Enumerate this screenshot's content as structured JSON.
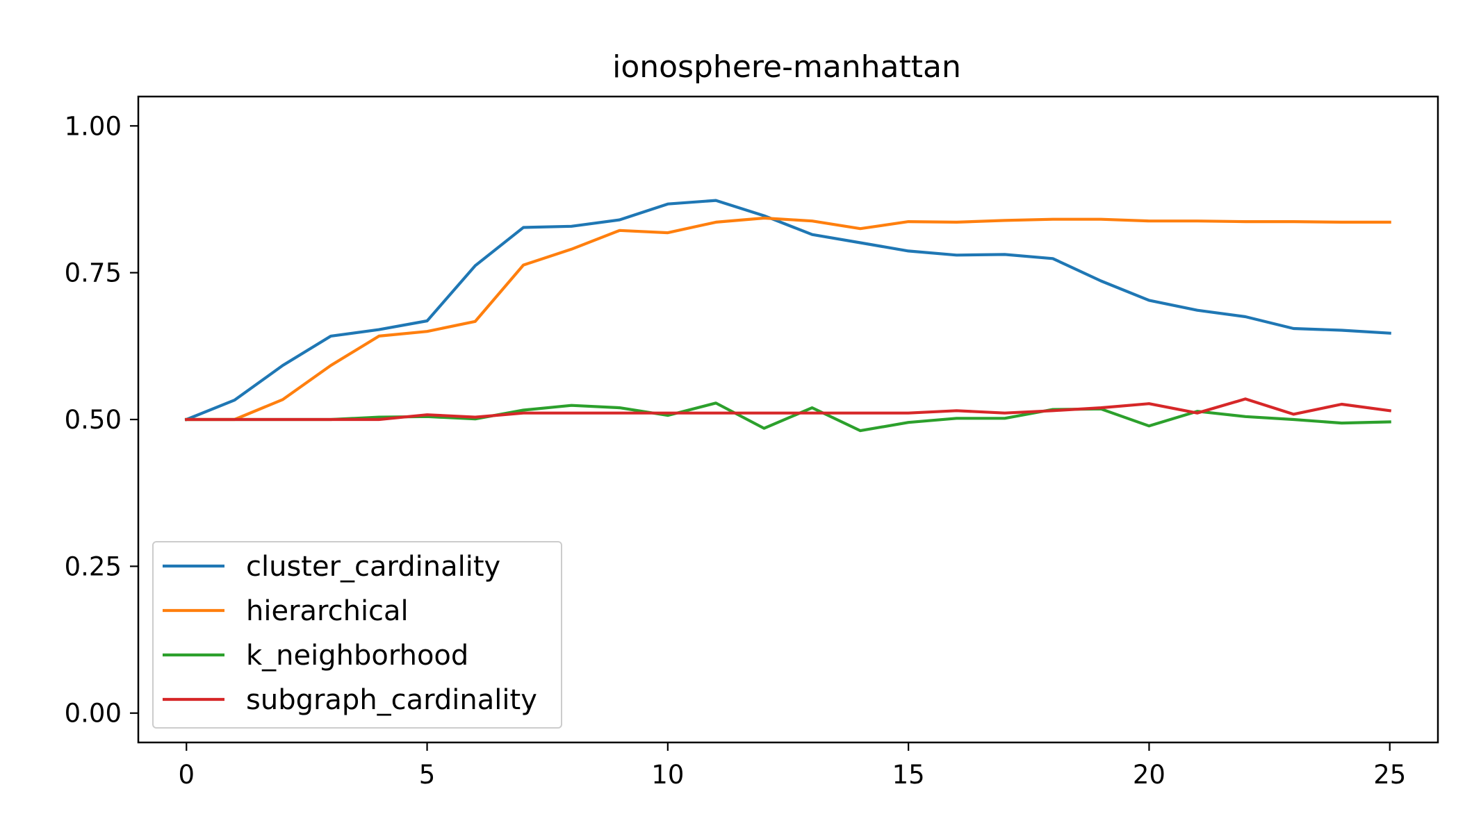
{
  "chart_data": {
    "type": "line",
    "title": "ionosphere-manhattan",
    "xlabel": "",
    "ylabel": "",
    "xlim": [
      -1,
      26
    ],
    "ylim": [
      -0.05,
      1.05
    ],
    "xticks": [
      0,
      5,
      10,
      15,
      20,
      25
    ],
    "xtick_labels": [
      "0",
      "5",
      "10",
      "15",
      "20",
      "25"
    ],
    "yticks": [
      0.0,
      0.25,
      0.5,
      0.75,
      1.0
    ],
    "ytick_labels": [
      "0.00",
      "0.25",
      "0.50",
      "0.75",
      "1.00"
    ],
    "grid": false,
    "legend_position": "lower-left",
    "x": [
      0,
      1,
      2,
      3,
      4,
      5,
      6,
      7,
      8,
      9,
      10,
      11,
      12,
      13,
      14,
      15,
      16,
      17,
      18,
      19,
      20,
      21,
      22,
      23,
      24,
      25
    ],
    "series": [
      {
        "name": "cluster_cardinality",
        "color": "#1f77b4",
        "values": [
          0.5,
          0.533,
          0.592,
          0.642,
          0.653,
          0.668,
          0.762,
          0.827,
          0.829,
          0.84,
          0.867,
          0.873,
          0.847,
          0.815,
          0.801,
          0.787,
          0.78,
          0.781,
          0.774,
          0.736,
          0.703,
          0.686,
          0.675,
          0.655,
          0.652,
          0.647
        ]
      },
      {
        "name": "hierarchical",
        "color": "#ff7f0e",
        "values": [
          0.5,
          0.5,
          0.534,
          0.592,
          0.642,
          0.65,
          0.667,
          0.763,
          0.79,
          0.822,
          0.818,
          0.836,
          0.843,
          0.838,
          0.825,
          0.837,
          0.836,
          0.839,
          0.841,
          0.841,
          0.838,
          0.838,
          0.837,
          0.837,
          0.836,
          0.836
        ]
      },
      {
        "name": "k_neighborhood",
        "color": "#2ca02c",
        "values": [
          0.5,
          0.5,
          0.5,
          0.5,
          0.504,
          0.505,
          0.501,
          0.516,
          0.524,
          0.52,
          0.507,
          0.528,
          0.485,
          0.52,
          0.481,
          0.495,
          0.502,
          0.502,
          0.517,
          0.518,
          0.489,
          0.514,
          0.505,
          0.5,
          0.494,
          0.496
        ]
      },
      {
        "name": "subgraph_cardinality",
        "color": "#d62728",
        "values": [
          0.5,
          0.5,
          0.5,
          0.5,
          0.5,
          0.508,
          0.504,
          0.511,
          0.511,
          0.511,
          0.511,
          0.511,
          0.511,
          0.511,
          0.511,
          0.511,
          0.515,
          0.511,
          0.515,
          0.52,
          0.527,
          0.511,
          0.535,
          0.509,
          0.526,
          0.515
        ]
      }
    ]
  }
}
